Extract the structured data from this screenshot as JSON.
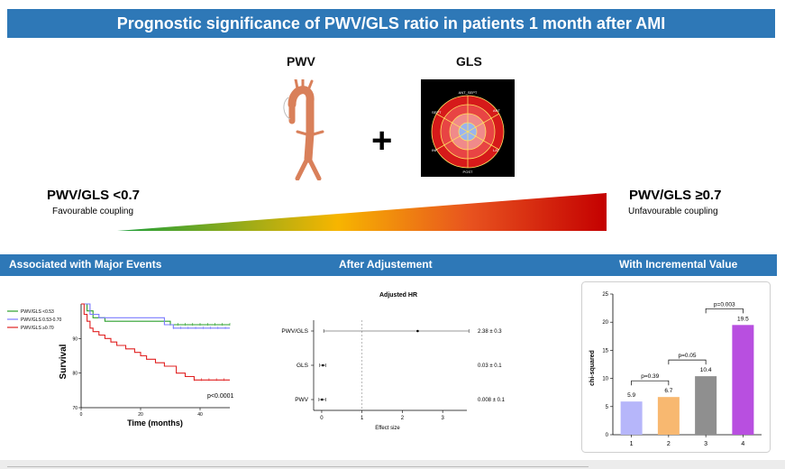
{
  "title": "Prognostic significance of PWV/GLS ratio in patients 1 month after AMI",
  "pwv_heading": "PWV",
  "gls_heading": "GLS",
  "plus_sign": "+",
  "bullseye_labels": {
    "top": "ANT_SEPT",
    "right_top": "ANT",
    "left_top": "SEPT",
    "left_bottom": "INF",
    "right_bottom": "LAT",
    "bottom": "POST"
  },
  "scale": {
    "left_title": "PWV/GLS <0.7",
    "left_sub": "Favourable coupling",
    "right_title": "PWV/GLS ≥0.7",
    "right_sub": "Unfavourable coupling",
    "colors": [
      "#1a9e3a",
      "#f7b500",
      "#e8531f",
      "#c40000"
    ]
  },
  "sections": [
    "Associated with Major Events",
    "After Adjustement",
    "With Incremental Value"
  ],
  "chart_data": [
    {
      "type": "line",
      "title": "",
      "xlabel": "Time (months)",
      "ylabel": "Survival",
      "xlim": [
        0,
        50
      ],
      "ylim": [
        70,
        100
      ],
      "xticks": [
        0,
        20,
        40
      ],
      "yticks": [
        70,
        80,
        90
      ],
      "annotation": "p<0.0001",
      "series": [
        {
          "name": "PWV/GLS <0.53",
          "color": "#2ca02c",
          "x": [
            0,
            2,
            4,
            8,
            30,
            50
          ],
          "y": [
            100,
            98,
            96,
            95,
            94,
            94
          ]
        },
        {
          "name": "PWV/GLS 0.53-0.70",
          "color": "#7b7bff",
          "x": [
            0,
            3,
            6,
            25,
            28,
            31,
            50
          ],
          "y": [
            100,
            97,
            96,
            96,
            94,
            93,
            93
          ]
        },
        {
          "name": "PWV/GLS ≥0.70",
          "color": "#e02020",
          "x": [
            0,
            1,
            2,
            3,
            4,
            6,
            8,
            10,
            12,
            15,
            18,
            20,
            22,
            25,
            28,
            32,
            35,
            38,
            50
          ],
          "y": [
            100,
            97,
            95,
            93,
            92,
            91,
            90,
            89,
            88,
            87,
            86,
            85,
            84,
            83,
            82,
            80,
            79,
            78,
            78
          ]
        }
      ]
    },
    {
      "type": "forest",
      "title": "Adjusted HR",
      "xlabel": "Effect size",
      "xlim": [
        -0.2,
        3.6
      ],
      "xticks": [
        0,
        1,
        2,
        3
      ],
      "reference": 1,
      "rows": [
        {
          "label": "PWV/GLS",
          "estimate": 2.38,
          "low": 0.05,
          "high": 3.65,
          "text": "2.38 ± 0.3"
        },
        {
          "label": "GLS",
          "estimate": 0.03,
          "low": -0.05,
          "high": 0.1,
          "text": "0.03 ± 0.1"
        },
        {
          "label": "PWV",
          "estimate": 0.008,
          "low": -0.07,
          "high": 0.1,
          "text": "0.008 ± 0.1"
        }
      ]
    },
    {
      "type": "bar",
      "title": "",
      "xlabel": "",
      "ylabel": "chi-squared",
      "categories": [
        "1",
        "2",
        "3",
        "4"
      ],
      "values": [
        5.9,
        6.7,
        10.4,
        19.5
      ],
      "colors": [
        "#b6b6fa",
        "#f8b870",
        "#8f8f8f",
        "#b84fe0"
      ],
      "ylim": [
        0,
        25
      ],
      "yticks": [
        0,
        5,
        10,
        15,
        20,
        25
      ],
      "comparisons": [
        {
          "from": 0,
          "to": 1,
          "label": "p=0.39"
        },
        {
          "from": 1,
          "to": 2,
          "label": "p=0.05"
        },
        {
          "from": 2,
          "to": 3,
          "label": "p=0.003"
        }
      ]
    }
  ]
}
